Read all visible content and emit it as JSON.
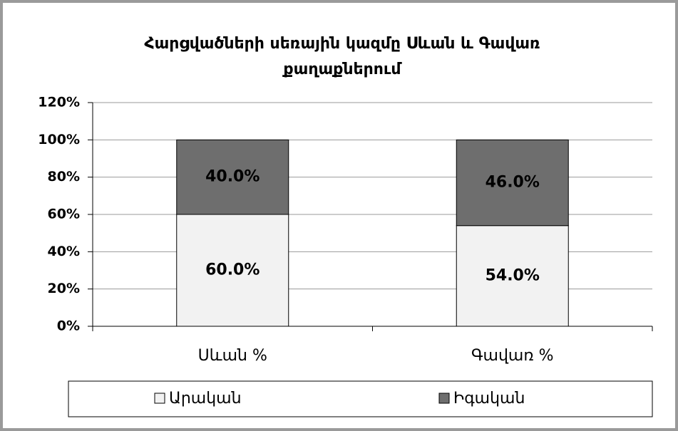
{
  "chart_data": {
    "type": "stacked_bar",
    "title": "Հարցվածների սեռային կազմը Սևան և Գավառ քաղաքներում",
    "categories": [
      "Սևան %",
      "Գավառ %"
    ],
    "series": [
      {
        "name": "Արական",
        "color": "#f2f2f2",
        "values": [
          60,
          54
        ],
        "value_labels": [
          "60.0%",
          "54.0%"
        ]
      },
      {
        "name": "Իգական",
        "color": "#6e6e6e",
        "values": [
          40,
          46
        ],
        "value_labels": [
          "40.0%",
          "46.0%"
        ]
      }
    ],
    "ylim": [
      0,
      120
    ],
    "yticks": [
      {
        "value": 0,
        "label": "0%"
      },
      {
        "value": 20,
        "label": "20%"
      },
      {
        "value": 40,
        "label": "40%"
      },
      {
        "value": 60,
        "label": "60%"
      },
      {
        "value": 80,
        "label": "80%"
      },
      {
        "value": 100,
        "label": "100%"
      },
      {
        "value": 120,
        "label": "120%"
      }
    ],
    "grid": true,
    "legend": "bottom"
  }
}
